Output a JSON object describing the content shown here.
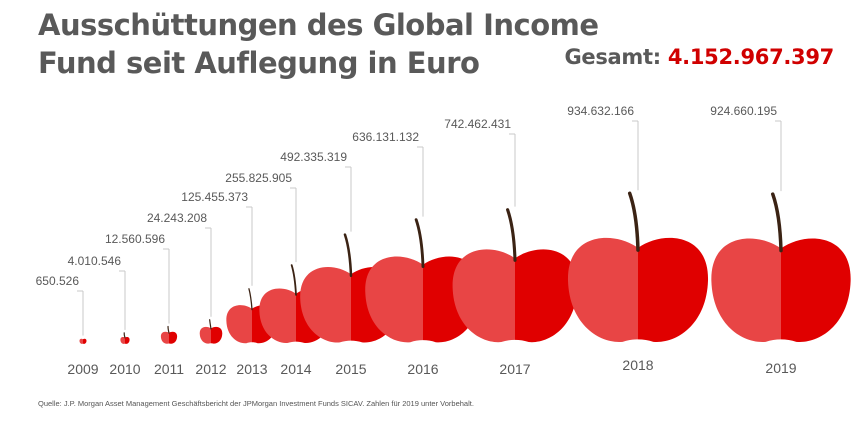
{
  "header": {
    "title_line1": "Ausschüttungen des Global Income",
    "title_line2": "Fund seit Auflegung in Euro",
    "total_label": "Gesamt:",
    "total_value": "4.152.967.397"
  },
  "source": "Quelle: J.P. Morgan Asset Management Geschäftsbericht der JPMorgan Investment Funds SICAV. Zahlen für 2019 unter Vorbehalt.",
  "colors": {
    "apple_light": "#e84545",
    "apple_dark": "#e00000",
    "stem": "#3b2314",
    "text": "#595959",
    "accent": "#d00000",
    "leader": "#c8c8c8"
  },
  "chart_data": {
    "type": "bar",
    "title": "Ausschüttungen des Global Income Fund seit Auflegung in Euro",
    "categories": [
      "2009",
      "2010",
      "2011",
      "2012",
      "2013",
      "2014",
      "2015",
      "2016",
      "2017",
      "2018",
      "2019"
    ],
    "values": [
      650526,
      4010546,
      12560596,
      24243208,
      125455373,
      255825905,
      492335319,
      636131132,
      742462431,
      934632166,
      924660195
    ],
    "labels": [
      "650.526",
      "4.010.546",
      "12.560.596",
      "24.243.208",
      "125.455.373",
      "255.825.905",
      "492.335.319",
      "636.131.132",
      "742.462.431",
      "934.632.166",
      "924.660.195"
    ],
    "marker": "apple"
  }
}
